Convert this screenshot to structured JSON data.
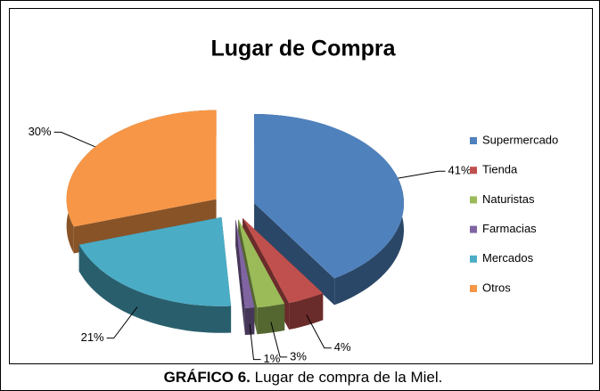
{
  "chart_data": {
    "type": "pie",
    "title": "Lugar de Compra",
    "categories": [
      "Supermercado",
      "Tienda",
      "Naturistas",
      "Farmacias",
      "Mercados",
      "Otros"
    ],
    "values": [
      41,
      4,
      3,
      1,
      21,
      30
    ],
    "value_labels": [
      "41%",
      "4%",
      "3%",
      "1%",
      "21%",
      "30%"
    ],
    "colors": [
      "#4f81bd",
      "#c0504d",
      "#9bbb59",
      "#8064a2",
      "#4bacc6",
      "#f79646"
    ],
    "legend": "right",
    "exploded": true,
    "three_d": true
  },
  "caption": {
    "label": "GRÁFICO 6.",
    "text": "Lugar de compra de la Miel."
  }
}
